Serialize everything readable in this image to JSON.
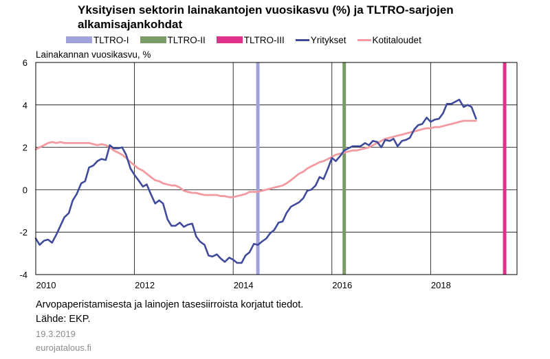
{
  "chart_data": {
    "type": "line",
    "title": "Yksityisen sektorin lainakantojen vuosikasvu (%) ja TLTRO-sarjojen alkamisajankohdat",
    "ylabel": "Lainakannan vuosikasvu, %",
    "ylim": [
      -4,
      6
    ],
    "yticks": [
      "6",
      "4",
      "2",
      "0",
      "-2",
      "-4"
    ],
    "xlim": [
      2010.0,
      2019.75
    ],
    "xticks": [
      {
        "value": 2010,
        "label": "2010"
      },
      {
        "value": 2012,
        "label": "2012"
      },
      {
        "value": 2014,
        "label": "2014"
      },
      {
        "value": 2016,
        "label": "2016"
      },
      {
        "value": 2018,
        "label": "2018"
      }
    ],
    "grid": true,
    "legend_position": "top",
    "events": [
      {
        "name": "TLTRO-I",
        "x": 2014.5,
        "color": "#9fa3d9"
      },
      {
        "name": "TLTRO-II",
        "x": 2016.25,
        "color": "#7a9a66"
      },
      {
        "name": "TLTRO-III",
        "x": 2019.5,
        "color": "#e0308c"
      }
    ],
    "series": [
      {
        "name": "Yritykset",
        "color": "#3f4a9a",
        "points": [
          [
            2010.0,
            -2.3
          ],
          [
            2010.08,
            -2.6
          ],
          [
            2010.17,
            -2.4
          ],
          [
            2010.25,
            -2.35
          ],
          [
            2010.33,
            -2.5
          ],
          [
            2010.42,
            -2.1
          ],
          [
            2010.5,
            -1.7
          ],
          [
            2010.58,
            -1.3
          ],
          [
            2010.67,
            -1.1
          ],
          [
            2010.75,
            -0.5
          ],
          [
            2010.83,
            -0.2
          ],
          [
            2010.92,
            0.3
          ],
          [
            2011.0,
            0.4
          ],
          [
            2011.08,
            1.05
          ],
          [
            2011.17,
            1.15
          ],
          [
            2011.25,
            1.35
          ],
          [
            2011.33,
            1.45
          ],
          [
            2011.42,
            1.4
          ],
          [
            2011.5,
            2.1
          ],
          [
            2011.58,
            1.95
          ],
          [
            2011.67,
            1.95
          ],
          [
            2011.75,
            2.0
          ],
          [
            2011.83,
            1.65
          ],
          [
            2011.92,
            1.0
          ],
          [
            2012.0,
            0.7
          ],
          [
            2012.08,
            0.45
          ],
          [
            2012.17,
            0.15
          ],
          [
            2012.25,
            0.25
          ],
          [
            2012.33,
            -0.2
          ],
          [
            2012.42,
            -0.65
          ],
          [
            2012.5,
            -0.5
          ],
          [
            2012.58,
            -0.65
          ],
          [
            2012.67,
            -1.4
          ],
          [
            2012.75,
            -1.7
          ],
          [
            2012.83,
            -1.7
          ],
          [
            2012.92,
            -1.55
          ],
          [
            2013.0,
            -1.75
          ],
          [
            2013.08,
            -1.65
          ],
          [
            2013.17,
            -1.6
          ],
          [
            2013.25,
            -2.2
          ],
          [
            2013.33,
            -2.45
          ],
          [
            2013.42,
            -2.6
          ],
          [
            2013.5,
            -3.1
          ],
          [
            2013.58,
            -3.15
          ],
          [
            2013.67,
            -3.05
          ],
          [
            2013.75,
            -3.25
          ],
          [
            2013.83,
            -3.4
          ],
          [
            2013.92,
            -3.2
          ],
          [
            2014.0,
            -3.3
          ],
          [
            2014.08,
            -3.45
          ],
          [
            2014.17,
            -3.45
          ],
          [
            2014.25,
            -3.1
          ],
          [
            2014.33,
            -2.95
          ],
          [
            2014.42,
            -2.55
          ],
          [
            2014.5,
            -2.6
          ],
          [
            2014.58,
            -2.45
          ],
          [
            2014.67,
            -2.3
          ],
          [
            2014.75,
            -2.05
          ],
          [
            2014.83,
            -1.9
          ],
          [
            2014.92,
            -1.55
          ],
          [
            2015.0,
            -1.5
          ],
          [
            2015.08,
            -1.1
          ],
          [
            2015.17,
            -0.8
          ],
          [
            2015.25,
            -0.7
          ],
          [
            2015.33,
            -0.6
          ],
          [
            2015.42,
            -0.4
          ],
          [
            2015.5,
            -0.05
          ],
          [
            2015.58,
            0.0
          ],
          [
            2015.67,
            0.2
          ],
          [
            2015.75,
            0.6
          ],
          [
            2015.83,
            0.5
          ],
          [
            2015.92,
            1.0
          ],
          [
            2016.0,
            1.5
          ],
          [
            2016.08,
            1.35
          ],
          [
            2016.17,
            1.6
          ],
          [
            2016.25,
            1.85
          ],
          [
            2016.33,
            1.95
          ],
          [
            2016.42,
            2.05
          ],
          [
            2016.5,
            2.05
          ],
          [
            2016.58,
            2.05
          ],
          [
            2016.67,
            2.2
          ],
          [
            2016.75,
            2.1
          ],
          [
            2016.83,
            2.3
          ],
          [
            2016.92,
            2.25
          ],
          [
            2017.0,
            2.0
          ],
          [
            2017.08,
            2.35
          ],
          [
            2017.17,
            2.3
          ],
          [
            2017.25,
            2.4
          ],
          [
            2017.33,
            2.05
          ],
          [
            2017.42,
            2.3
          ],
          [
            2017.5,
            2.35
          ],
          [
            2017.58,
            2.45
          ],
          [
            2017.67,
            2.85
          ],
          [
            2017.75,
            3.05
          ],
          [
            2017.83,
            3.1
          ],
          [
            2017.92,
            3.4
          ],
          [
            2018.0,
            3.2
          ],
          [
            2018.08,
            3.3
          ],
          [
            2018.17,
            3.35
          ],
          [
            2018.25,
            3.6
          ],
          [
            2018.33,
            4.05
          ],
          [
            2018.42,
            4.05
          ],
          [
            2018.5,
            4.15
          ],
          [
            2018.58,
            4.25
          ],
          [
            2018.67,
            3.9
          ],
          [
            2018.75,
            4.0
          ],
          [
            2018.83,
            3.9
          ],
          [
            2018.92,
            3.35
          ]
        ]
      },
      {
        "name": "Kotitaloudet",
        "color": "#f29aa0",
        "points": [
          [
            2010.0,
            1.9
          ],
          [
            2010.08,
            2.0
          ],
          [
            2010.17,
            2.1
          ],
          [
            2010.25,
            2.2
          ],
          [
            2010.33,
            2.25
          ],
          [
            2010.42,
            2.2
          ],
          [
            2010.5,
            2.25
          ],
          [
            2010.58,
            2.2
          ],
          [
            2010.67,
            2.2
          ],
          [
            2010.75,
            2.2
          ],
          [
            2010.83,
            2.2
          ],
          [
            2010.92,
            2.2
          ],
          [
            2011.0,
            2.2
          ],
          [
            2011.08,
            2.2
          ],
          [
            2011.17,
            2.15
          ],
          [
            2011.25,
            2.1
          ],
          [
            2011.33,
            2.15
          ],
          [
            2011.42,
            2.1
          ],
          [
            2011.5,
            2.0
          ],
          [
            2011.58,
            1.85
          ],
          [
            2011.67,
            1.75
          ],
          [
            2011.75,
            1.65
          ],
          [
            2011.83,
            1.5
          ],
          [
            2011.92,
            1.3
          ],
          [
            2012.0,
            1.15
          ],
          [
            2012.08,
            1.0
          ],
          [
            2012.17,
            0.9
          ],
          [
            2012.25,
            0.75
          ],
          [
            2012.33,
            0.6
          ],
          [
            2012.42,
            0.45
          ],
          [
            2012.5,
            0.4
          ],
          [
            2012.58,
            0.3
          ],
          [
            2012.67,
            0.25
          ],
          [
            2012.75,
            0.2
          ],
          [
            2012.83,
            0.2
          ],
          [
            2012.92,
            0.1
          ],
          [
            2013.0,
            -0.05
          ],
          [
            2013.08,
            -0.1
          ],
          [
            2013.17,
            -0.15
          ],
          [
            2013.25,
            -0.15
          ],
          [
            2013.33,
            -0.2
          ],
          [
            2013.42,
            -0.25
          ],
          [
            2013.5,
            -0.25
          ],
          [
            2013.58,
            -0.25
          ],
          [
            2013.67,
            -0.25
          ],
          [
            2013.75,
            -0.3
          ],
          [
            2013.83,
            -0.3
          ],
          [
            2013.92,
            -0.35
          ],
          [
            2014.0,
            -0.35
          ],
          [
            2014.08,
            -0.3
          ],
          [
            2014.17,
            -0.25
          ],
          [
            2014.25,
            -0.2
          ],
          [
            2014.33,
            -0.1
          ],
          [
            2014.42,
            -0.1
          ],
          [
            2014.5,
            -0.1
          ],
          [
            2014.58,
            -0.05
          ],
          [
            2014.67,
            0.0
          ],
          [
            2014.75,
            0.05
          ],
          [
            2014.83,
            0.1
          ],
          [
            2014.92,
            0.15
          ],
          [
            2015.0,
            0.2
          ],
          [
            2015.08,
            0.3
          ],
          [
            2015.17,
            0.45
          ],
          [
            2015.25,
            0.6
          ],
          [
            2015.33,
            0.75
          ],
          [
            2015.42,
            0.85
          ],
          [
            2015.5,
            1.0
          ],
          [
            2015.58,
            1.1
          ],
          [
            2015.67,
            1.2
          ],
          [
            2015.75,
            1.3
          ],
          [
            2015.83,
            1.35
          ],
          [
            2015.92,
            1.45
          ],
          [
            2016.0,
            1.55
          ],
          [
            2016.08,
            1.65
          ],
          [
            2016.17,
            1.7
          ],
          [
            2016.25,
            1.75
          ],
          [
            2016.33,
            1.8
          ],
          [
            2016.42,
            1.85
          ],
          [
            2016.5,
            1.85
          ],
          [
            2016.58,
            1.9
          ],
          [
            2016.67,
            1.95
          ],
          [
            2016.75,
            2.0
          ],
          [
            2016.83,
            2.1
          ],
          [
            2016.92,
            2.2
          ],
          [
            2017.0,
            2.3
          ],
          [
            2017.08,
            2.4
          ],
          [
            2017.17,
            2.45
          ],
          [
            2017.25,
            2.5
          ],
          [
            2017.33,
            2.55
          ],
          [
            2017.42,
            2.6
          ],
          [
            2017.5,
            2.65
          ],
          [
            2017.58,
            2.7
          ],
          [
            2017.67,
            2.75
          ],
          [
            2017.75,
            2.8
          ],
          [
            2017.83,
            2.85
          ],
          [
            2017.92,
            2.9
          ],
          [
            2018.0,
            2.9
          ],
          [
            2018.08,
            2.95
          ],
          [
            2018.17,
            2.95
          ],
          [
            2018.25,
            3.0
          ],
          [
            2018.33,
            3.05
          ],
          [
            2018.42,
            3.1
          ],
          [
            2018.5,
            3.15
          ],
          [
            2018.58,
            3.2
          ],
          [
            2018.67,
            3.25
          ],
          [
            2018.75,
            3.25
          ],
          [
            2018.83,
            3.25
          ],
          [
            2018.92,
            3.25
          ]
        ]
      }
    ]
  },
  "footer": {
    "note": "Arvopaperistamisesta ja lainojen tasesiirroista korjatut tiedot.",
    "source": "Lähde: EKP.",
    "date": "19.3.2019",
    "site": "eurojatalous.fi"
  }
}
